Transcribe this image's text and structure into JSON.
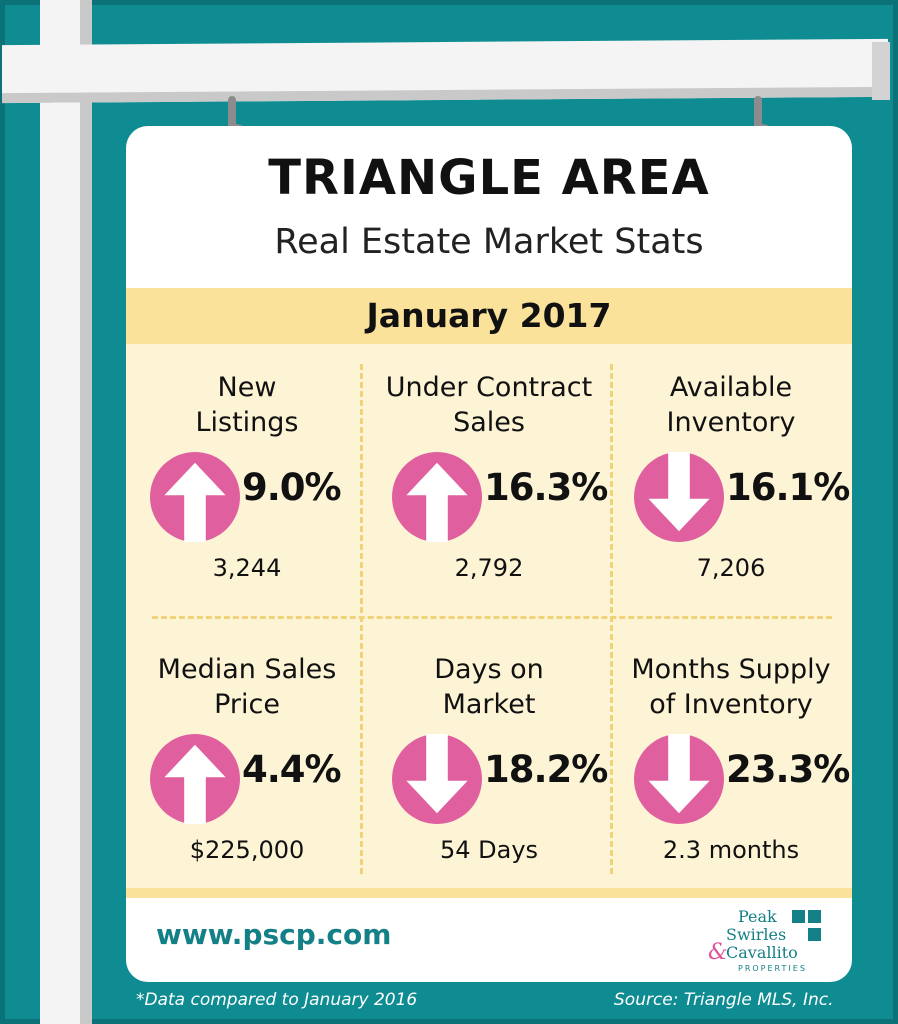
{
  "header": {
    "title": "TRIANGLE AREA",
    "subtitle": "Real Estate Market Stats",
    "period": "January 2017"
  },
  "stats": [
    {
      "label_lines": [
        "New",
        "Listings"
      ],
      "direction": "up",
      "change": "9.0%",
      "value": "3,244"
    },
    {
      "label_lines": [
        "Under Contract",
        "Sales"
      ],
      "direction": "up",
      "change": "16.3%",
      "value": "2,792"
    },
    {
      "label_lines": [
        "Available",
        "Inventory"
      ],
      "direction": "down",
      "change": "16.1%",
      "value": "7,206"
    },
    {
      "label_lines": [
        "Median Sales",
        "Price"
      ],
      "direction": "up",
      "change": "4.4%",
      "value": "$225,000"
    },
    {
      "label_lines": [
        "Days on",
        "Market"
      ],
      "direction": "down",
      "change": "18.2%",
      "value": "54 Days"
    },
    {
      "label_lines": [
        "Months Supply",
        "of Inventory"
      ],
      "direction": "down",
      "change": "23.3%",
      "value": "2.3 months"
    }
  ],
  "footer": {
    "website": "www.pscp.com",
    "logo": {
      "line1": "Peak",
      "line2": "Swirles",
      "amp": "&",
      "line3": "Cavallito",
      "line4": "PROPERTIES"
    },
    "note_left": "*Data compared to January 2016",
    "note_right": "Source: Triangle MLS, Inc."
  },
  "colors": {
    "background": "#0e8c92",
    "band": "#fbe29a",
    "panel": "#fdf4d6",
    "arrow": "#e0609f",
    "accent": "#137f86"
  },
  "icons": {
    "up": "arrow-up-circle-icon",
    "down": "arrow-down-circle-icon"
  }
}
